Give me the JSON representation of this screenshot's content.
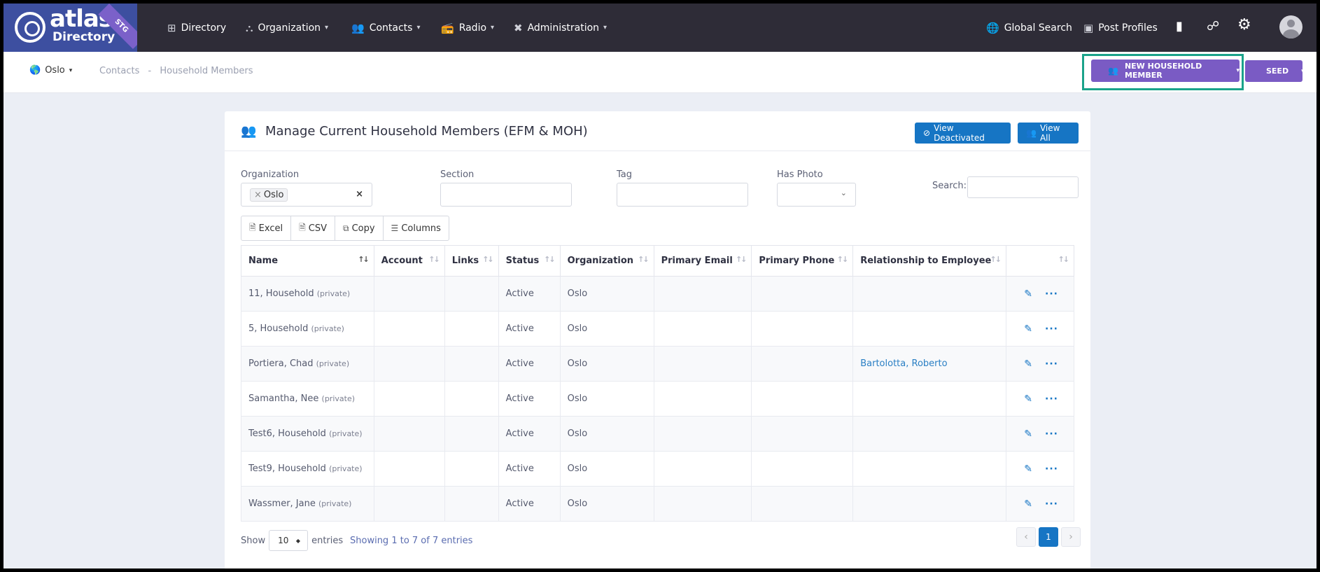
{
  "brand": {
    "name": "atlas",
    "subname": "Directory",
    "env_badge": "STG"
  },
  "nav": {
    "items": [
      {
        "label": "Directory",
        "icon": "sitemap-icon",
        "has_menu": false
      },
      {
        "label": "Organization",
        "icon": "org-tree-icon",
        "has_menu": true
      },
      {
        "label": "Contacts",
        "icon": "users-icon",
        "has_menu": true
      },
      {
        "label": "Radio",
        "icon": "radio-icon",
        "has_menu": true
      },
      {
        "label": "Administration",
        "icon": "tools-icon",
        "has_menu": true
      }
    ],
    "global_search": "Global Search",
    "post_profiles": "Post Profiles"
  },
  "subheader": {
    "location": "Oslo",
    "breadcrumb": [
      "Contacts",
      "-",
      "Household Members"
    ],
    "new_button": "NEW HOUSEHOLD MEMBER",
    "seed_button": "SEED"
  },
  "card": {
    "title": "Manage Current Household Members (EFM & MOH)",
    "view_deactivated": "View Deactivated",
    "view_all": "View All"
  },
  "filters": {
    "organization_label": "Organization",
    "organization_value": "Oslo",
    "section_label": "Section",
    "tag_label": "Tag",
    "has_photo_label": "Has Photo",
    "search_label": "Search:"
  },
  "tools": [
    "Excel",
    "CSV",
    "Copy",
    "Columns"
  ],
  "table": {
    "columns": [
      "Name",
      "Account",
      "Links",
      "Status",
      "Organization",
      "Primary Email",
      "Primary Phone",
      "Relationship to Employee",
      ""
    ],
    "rows": [
      {
        "name": "11, Household",
        "tag": "(private)",
        "status": "Active",
        "org": "Oslo",
        "relationship": ""
      },
      {
        "name": "5, Household",
        "tag": "(private)",
        "status": "Active",
        "org": "Oslo",
        "relationship": ""
      },
      {
        "name": "Portiera, Chad",
        "tag": "(private)",
        "status": "Active",
        "org": "Oslo",
        "relationship": "Bartolotta, Roberto"
      },
      {
        "name": "Samantha, Nee",
        "tag": "(private)",
        "status": "Active",
        "org": "Oslo",
        "relationship": ""
      },
      {
        "name": "Test6, Household",
        "tag": "(private)",
        "status": "Active",
        "org": "Oslo",
        "relationship": ""
      },
      {
        "name": "Test9, Household",
        "tag": "(private)",
        "status": "Active",
        "org": "Oslo",
        "relationship": ""
      },
      {
        "name": "Wassmer, Jane",
        "tag": "(private)",
        "status": "Active",
        "org": "Oslo",
        "relationship": ""
      }
    ]
  },
  "footer": {
    "show_label": "Show",
    "entries_value": "10",
    "entries_label": "entries",
    "showing_text": "Showing 1 to 7 of 7 entries",
    "current_page": "1"
  },
  "colors": {
    "topbar": "#2e2c37",
    "brand": "#3d4fa0",
    "purple": "#7a5bc4",
    "blue": "#1675c4",
    "highlight": "#1aa38a"
  }
}
